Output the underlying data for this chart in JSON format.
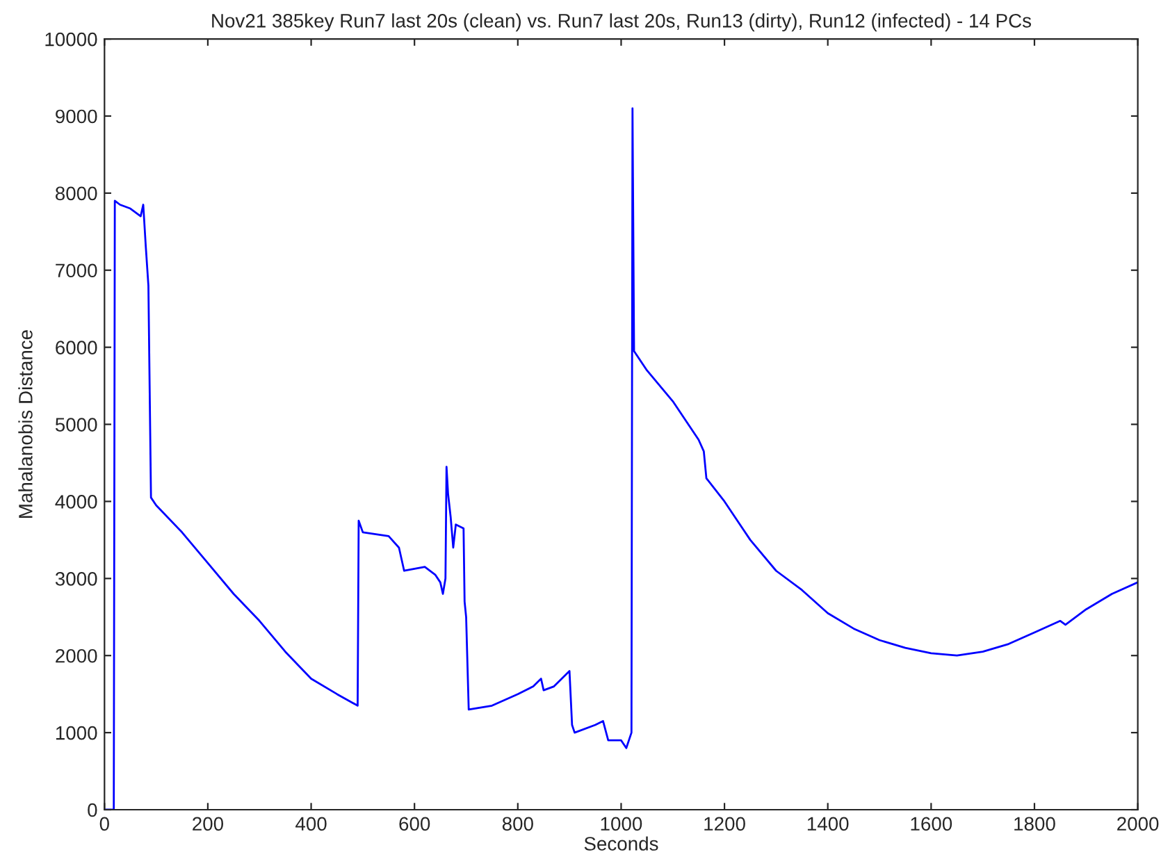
{
  "chart_data": {
    "type": "line",
    "title": "Nov21 385key Run7 last 20s (clean) vs. Run7 last 20s, Run13 (dirty), Run12 (infected) - 14 PCs",
    "xlabel": "Seconds",
    "ylabel": "Mahalanobis Distance",
    "x": [
      0,
      18,
      20,
      30,
      50,
      70,
      75,
      80,
      85,
      90,
      100,
      150,
      200,
      250,
      300,
      350,
      400,
      450,
      490,
      492,
      500,
      550,
      570,
      580,
      620,
      640,
      650,
      655,
      660,
      662,
      665,
      670,
      675,
      680,
      695,
      697,
      700,
      705,
      750,
      800,
      830,
      845,
      850,
      870,
      900,
      905,
      910,
      950,
      965,
      975,
      1000,
      1010,
      1020,
      1022,
      1025,
      1050,
      1100,
      1150,
      1160,
      1165,
      1200,
      1250,
      1300,
      1350,
      1400,
      1450,
      1500,
      1550,
      1600,
      1650,
      1700,
      1750,
      1800,
      1850,
      1860,
      1900,
      1950,
      2000
    ],
    "series": [
      {
        "color": "#0000ff",
        "values": [
          0,
          0,
          7900,
          7850,
          7800,
          7700,
          7850,
          7300,
          6800,
          4050,
          3950,
          3600,
          3200,
          2800,
          2450,
          2050,
          1700,
          1500,
          1350,
          3750,
          3600,
          3550,
          3400,
          3100,
          3150,
          3050,
          2950,
          2800,
          3000,
          4450,
          4100,
          3800,
          3400,
          3700,
          3650,
          2700,
          2500,
          1300,
          1350,
          1500,
          1600,
          1700,
          1550,
          1600,
          1800,
          1100,
          1000,
          1100,
          1150,
          900,
          900,
          800,
          1000,
          9100,
          5950,
          5700,
          5300,
          4800,
          4650,
          4300,
          4000,
          3500,
          3100,
          2850,
          2550,
          2350,
          2200,
          2100,
          2030,
          2000,
          2050,
          2150,
          2300,
          2450,
          2400,
          2600,
          2800,
          2950
        ]
      }
    ],
    "xlim": [
      0,
      2000
    ],
    "xticks": [
      0,
      200,
      400,
      600,
      800,
      1000,
      1200,
      1400,
      1600,
      1800,
      2000
    ],
    "ylim": [
      0,
      10000
    ],
    "yticks": [
      0,
      1000,
      2000,
      3000,
      4000,
      5000,
      6000,
      7000,
      8000,
      9000,
      10000
    ],
    "marker": "none",
    "line_style": "solid"
  }
}
